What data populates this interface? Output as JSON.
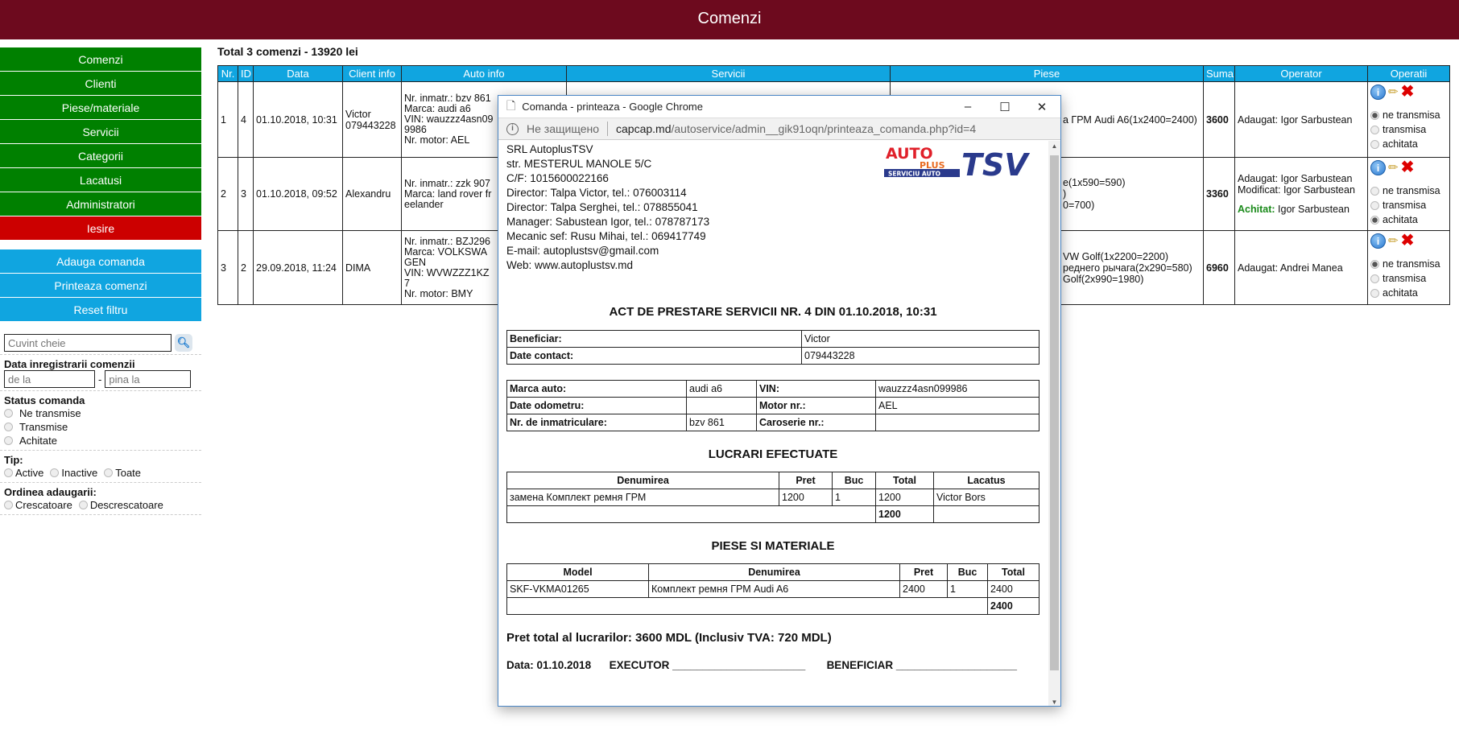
{
  "header": {
    "title": "Comenzi"
  },
  "sidebar": {
    "nav": [
      "Comenzi",
      "Clienti",
      "Piese/materiale",
      "Servicii",
      "Categorii",
      "Lacatusi",
      "Administratori"
    ],
    "logout": "Iesire",
    "actions": [
      "Adauga comanda",
      "Printeaza comenzi",
      "Reset filtru"
    ]
  },
  "filters": {
    "search_placeholder": "Cuvint cheie",
    "date_label": "Data inregistrarii comenzii",
    "from_placeholder": "de la",
    "to_placeholder": "pina la",
    "dash": "-",
    "status_label": "Status comanda",
    "status_options": [
      "Ne transmise",
      "Transmise",
      "Achitate"
    ],
    "type_label": "Tip:",
    "type_options": [
      "Active",
      "Inactive",
      "Toate"
    ],
    "order_label": "Ordinea adaugarii:",
    "order_options": [
      "Crescatoare",
      "Descrescatoare"
    ]
  },
  "orders": {
    "total": "Total 3 comenzi - 13920 lei",
    "columns": [
      "Nr.",
      "ID",
      "Data",
      "Client info",
      "Auto info",
      "Servicii",
      "Piese",
      "Suma",
      "Operator",
      "Operatii"
    ],
    "status_labels": [
      "ne transmisa",
      "transmisa",
      "achitata"
    ],
    "rows": [
      {
        "nr": "1",
        "id": "4",
        "date": "01.10.2018, 10:31",
        "client": [
          "Victor",
          "079443228"
        ],
        "auto": [
          "Nr. inmatr.: bzv 861",
          "Marca: audi a6",
          "VIN: wauzzz4asn099986",
          "Nr. motor: AEL"
        ],
        "piese": [
          "а ГРМ Audi A6(1x2400=2400)"
        ],
        "suma": "3600",
        "operator": [
          "Adaugat: Igor Sarbustean"
        ],
        "achitat_label": "",
        "achitat_by": "",
        "status": 0
      },
      {
        "nr": "2",
        "id": "3",
        "date": "01.10.2018, 09:52",
        "client": [
          "Alexandru"
        ],
        "auto": [
          "Nr. inmatr.: zzk 907",
          "Marca: land rover freelander"
        ],
        "piese": [
          "e(1x590=590)",
          ")",
          "0=700)"
        ],
        "suma": "3360",
        "operator": [
          "Adaugat: Igor Sarbustean",
          "Modificat: Igor Sarbustean"
        ],
        "achitat_label": "Achitat:",
        "achitat_by": "Igor Sarbustean",
        "status": 2
      },
      {
        "nr": "3",
        "id": "2",
        "date": "29.09.2018, 11:24",
        "client": [
          "DIMA"
        ],
        "auto": [
          "Nr. inmatr.: BZJ296",
          "Marca: VOLKSWAGEN",
          "VIN: WVWZZZ1KZ7",
          "Nr. motor: BMY"
        ],
        "piese": [
          "VW Golf(1x2200=2200)",
          "реднего рычага(2x290=580)",
          "Golf(2x990=1980)"
        ],
        "suma": "6960",
        "operator": [
          "Adaugat: Andrei Manea"
        ],
        "achitat_label": "",
        "achitat_by": "",
        "status": 0
      }
    ]
  },
  "popup": {
    "window_title": "Comanda - printeaza - Google Chrome",
    "security": "Не защищено",
    "url_host": "capcap.md",
    "url_path": "/autoservice/admin__gik91oqn/printeaza_comanda.php?id=4",
    "company": [
      "SRL AutoplusTSV",
      "str. MESTERUL MANOLE 5/C",
      "C/F: 1015600022166",
      "Director: Talpa Victor, tel.: 076003114",
      "Director: Talpa Serghei, tel.: 078855041",
      "Manager: Sabustean Igor, tel.: 078787173",
      "Mecanic sef: Rusu Mihai, tel.: 069417749",
      "E-mail: autoplustsv@gmail.com",
      "Web: www.autoplustsv.md"
    ],
    "logo": {
      "text1": "AUTO",
      "text2": "PLUS",
      "text3": "SERVICIU AUTO",
      "text4": "TSV"
    },
    "act_title": "ACT DE PRESTARE SERVICII NR. 4 DIN 01.10.2018, 10:31",
    "client": [
      [
        "Beneficiar:",
        "Victor"
      ],
      [
        "Date contact:",
        "079443228"
      ]
    ],
    "car": [
      [
        "Marca auto:",
        "audi a6",
        "VIN:",
        "wauzzz4asn099986"
      ],
      [
        "Date odometru:",
        "",
        "Motor nr.:",
        "AEL"
      ],
      [
        "Nr. de inmatriculare:",
        "bzv 861",
        "Caroserie nr.:",
        ""
      ]
    ],
    "works_title": "LUCRARI EFECTUATE",
    "works_columns": [
      "Denumirea",
      "Pret",
      "Buc",
      "Total",
      "Lacatus"
    ],
    "works_rows": [
      [
        "замена Комплект ремня ГРМ",
        "1200",
        "1",
        "1200",
        "Victor Bors"
      ]
    ],
    "works_total": "1200",
    "parts_title": "PIESE SI MATERIALE",
    "parts_columns": [
      "Model",
      "Denumirea",
      "Pret",
      "Buc",
      "Total"
    ],
    "parts_rows": [
      [
        "SKF-VKMA01265",
        "Комплект ремня ГРМ Audi A6",
        "2400",
        "1",
        "2400"
      ]
    ],
    "parts_total": "2400",
    "grand_total": "Pret total al lucrarilor: 3600 MDL (Inclusiv TVA: 720 MDL)",
    "sign_date": "Data: 01.10.2018",
    "executor": "EXECUTOR ______________________",
    "beneficiar": "BENEFICIAR ____________________"
  }
}
